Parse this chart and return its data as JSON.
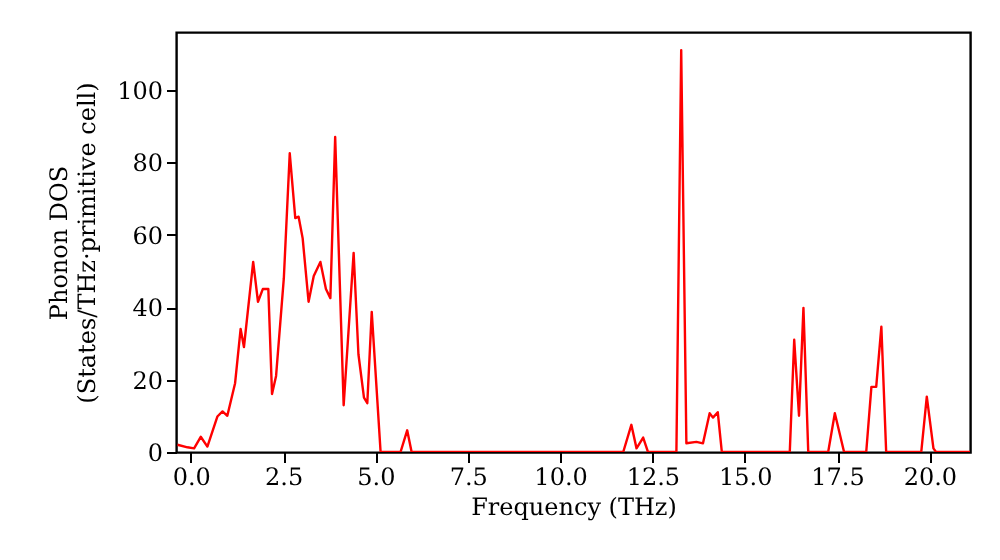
{
  "chart_data": {
    "type": "line",
    "xlabel": "Frequency (THz)",
    "ylabel": "Phonon DOS\n(States/THz·primitive cell)",
    "x": [
      -0.36,
      -0.09,
      0.09,
      0.27,
      0.45,
      0.72,
      0.86,
      0.99,
      1.2,
      1.35,
      1.44,
      1.69,
      1.82,
      1.95,
      2.1,
      2.2,
      2.31,
      2.52,
      2.68,
      2.83,
      2.92,
      3.03,
      3.19,
      3.33,
      3.51,
      3.66,
      3.78,
      3.91,
      4.14,
      4.41,
      4.54,
      4.69,
      4.78,
      4.9,
      5.14,
      5.68,
      5.86,
      5.98,
      11.71,
      11.93,
      12.07,
      12.25,
      12.38,
      13.15,
      13.28,
      13.42,
      13.69,
      13.87,
      14.05,
      14.14,
      14.27,
      14.38,
      16.22,
      16.34,
      16.47,
      16.59,
      16.72,
      17.26,
      17.44,
      17.69,
      18.29,
      18.43,
      18.56,
      18.7,
      18.83,
      19.78,
      19.93,
      20.11,
      20.18,
      21.1
    ],
    "series": [
      {
        "color": "#ff0000",
        "values": [
          2,
          1.3,
          1,
          4.2,
          1.5,
          9.8,
          11.2,
          10,
          19,
          34,
          29,
          52.5,
          41.5,
          45,
          45,
          16,
          21,
          48,
          82.5,
          64.6,
          65,
          59,
          41.5,
          48.6,
          52.5,
          45,
          42.5,
          87,
          12.9,
          55,
          27,
          15,
          13.5,
          38.7,
          0,
          0,
          6,
          0,
          0,
          7.5,
          1,
          4,
          0,
          0,
          111,
          2.4,
          2.8,
          2.4,
          10.7,
          9.5,
          11,
          0,
          0,
          31,
          10,
          39.8,
          0,
          0,
          10.7,
          0,
          0,
          18,
          18,
          34.6,
          0,
          0,
          15.3,
          1,
          0,
          0
        ]
      }
    ],
    "xlim": [
      -0.4,
      21.1
    ],
    "ylim": [
      0,
      116
    ],
    "xticks": [
      {
        "value": 0,
        "label": "0.0"
      },
      {
        "value": 2.5,
        "label": "2.5"
      },
      {
        "value": 5,
        "label": "5.0"
      },
      {
        "value": 7.5,
        "label": "7.5"
      },
      {
        "value": 10,
        "label": "10.0"
      },
      {
        "value": 12.5,
        "label": "12.5"
      },
      {
        "value": 15,
        "label": "15.0"
      },
      {
        "value": 17.5,
        "label": "17.5"
      },
      {
        "value": 20,
        "label": "20.0"
      }
    ],
    "yticks": [
      0,
      20,
      40,
      60,
      80,
      100
    ],
    "grid": false,
    "marker": "none",
    "line_style": "solid"
  }
}
